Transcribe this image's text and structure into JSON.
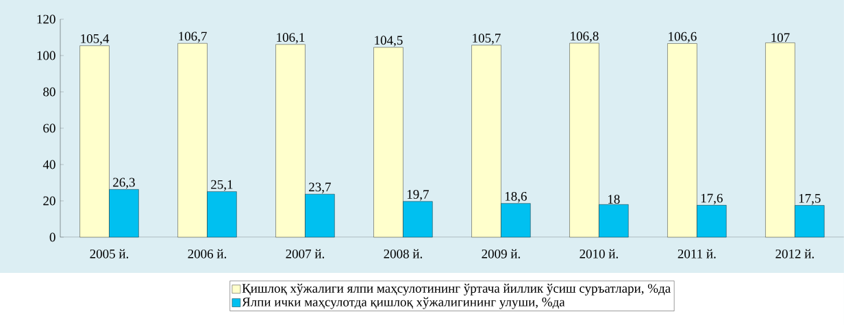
{
  "chart_data": {
    "type": "bar",
    "categories": [
      "2005 й.",
      "2006 й.",
      "2007 й.",
      "2008 й.",
      "2009 й.",
      "2010 й.",
      "2011 й.",
      "2012 й."
    ],
    "series": [
      {
        "name": "Қишлоқ хўжалиги ялпи маҳсулотининг ўртача йиллик ўсиш суръатлари, %да",
        "color": "#ffffcc",
        "values": [
          105.4,
          106.7,
          106.1,
          104.5,
          105.7,
          106.8,
          106.6,
          107
        ],
        "value_labels": [
          "105,4",
          "106,7",
          "106,1",
          "104,5",
          "105,7",
          "106,8",
          "106,6",
          "107"
        ]
      },
      {
        "name": "Ялпи ички маҳсулотда қишлоқ хўжалигининг улуши, %да",
        "color": "#00c0f0",
        "values": [
          26.3,
          25.1,
          23.7,
          19.7,
          18.6,
          18,
          17.6,
          17.5
        ],
        "value_labels": [
          "26,3",
          "25,1",
          "23,7",
          "19,7",
          "18,6",
          "18",
          "17,6",
          "17,5"
        ]
      }
    ],
    "ylim": [
      0,
      120
    ],
    "yticks": [
      0,
      20,
      40,
      60,
      80,
      100,
      120
    ],
    "grid": false,
    "legend": "bottom"
  }
}
